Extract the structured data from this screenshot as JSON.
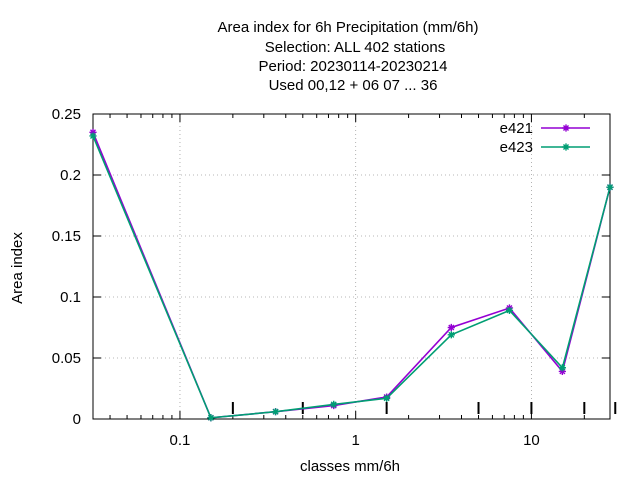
{
  "chart_data": {
    "type": "line",
    "title_lines": [
      "Area index  for 6h Precipitation (mm/6h)",
      "Selection: ALL     402 stations",
      "Period: 20230114-20230214",
      "Used  00,12  + 06 07 ... 36"
    ],
    "xlabel": "classes mm/6h",
    "ylabel": "Area index",
    "x_scale": "log",
    "xlim": [
      0.032,
      28
    ],
    "ylim": [
      0,
      0.25
    ],
    "x_ticks": [
      0.1,
      1,
      10
    ],
    "x_tick_labels": [
      "0.1",
      "1",
      "10"
    ],
    "y_ticks": [
      0,
      0.05,
      0.1,
      0.15,
      0.2,
      0.25
    ],
    "y_tick_labels": [
      "0",
      "0.05",
      "0.1",
      "0.15",
      "0.2",
      "0.25"
    ],
    "grid": true,
    "legend_position": "top-right",
    "x": [
      0.032,
      0.15,
      0.35,
      0.75,
      1.5,
      3.5,
      7.5,
      15,
      28
    ],
    "series": [
      {
        "name": "e421",
        "color": "#9400d3",
        "values": [
          0.235,
          0.001,
          0.006,
          0.011,
          0.018,
          0.075,
          0.091,
          0.039,
          0.19
        ]
      },
      {
        "name": "e423",
        "color": "#009e73",
        "values": [
          0.232,
          0.001,
          0.006,
          0.012,
          0.017,
          0.069,
          0.089,
          0.042,
          0.19
        ]
      }
    ],
    "class_marks": [
      0.2,
      0.5,
      1.5,
      5,
      10,
      20,
      30
    ]
  }
}
